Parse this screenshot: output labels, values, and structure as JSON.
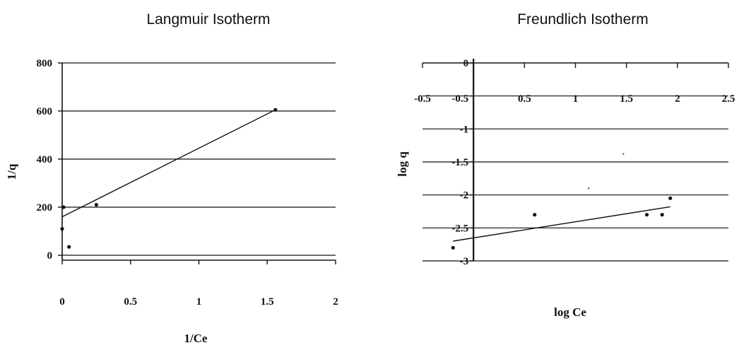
{
  "chart_data": [
    {
      "type": "scatter",
      "title": "Langmuir Isotherm",
      "xlabel": "1/Ce",
      "ylabel": "1/q",
      "xlim": [
        0,
        2
      ],
      "ylim": [
        0,
        800
      ],
      "x_ticks": [
        "0",
        "0.5",
        "1",
        "1.5",
        "2"
      ],
      "y_ticks": [
        "0",
        "200",
        "400",
        "600",
        "800"
      ],
      "grid": "horizontal",
      "series": [
        {
          "points": [
            {
              "x": 0.01,
              "y": 200
            },
            {
              "x": 0.0,
              "y": 110
            },
            {
              "x": 0.05,
              "y": 35
            },
            {
              "x": 0.25,
              "y": 210
            },
            {
              "x": 1.56,
              "y": 605
            }
          ]
        }
      ],
      "trendline": {
        "x": [
          0,
          1.56
        ],
        "y": [
          160,
          605
        ]
      }
    },
    {
      "type": "scatter",
      "title": "Freundlich Isotherm",
      "xlabel": "log Ce",
      "ylabel": "log q",
      "xlim": [
        -0.5,
        2.5
      ],
      "ylim": [
        -3,
        0
      ],
      "x_ticks": [
        "-0.5",
        "0",
        "0.5",
        "1",
        "1.5",
        "2",
        "2.5"
      ],
      "y_ticks": [
        "0",
        "-0.5",
        "-1",
        "-1.5",
        "-2",
        "-2.5",
        "-3"
      ],
      "grid": "horizontal",
      "series": [
        {
          "points": [
            {
              "x": -0.2,
              "y": -2.8
            },
            {
              "x": 0.6,
              "y": -2.3
            },
            {
              "x": 1.7,
              "y": -2.3
            },
            {
              "x": 1.85,
              "y": -2.3
            },
            {
              "x": 1.93,
              "y": -2.05
            },
            {
              "x": 1.47,
              "y": -1.38
            },
            {
              "x": 1.13,
              "y": -1.9
            }
          ]
        }
      ],
      "trendline": {
        "x": [
          -0.2,
          1.93
        ],
        "y": [
          -2.7,
          -2.18
        ]
      }
    }
  ]
}
